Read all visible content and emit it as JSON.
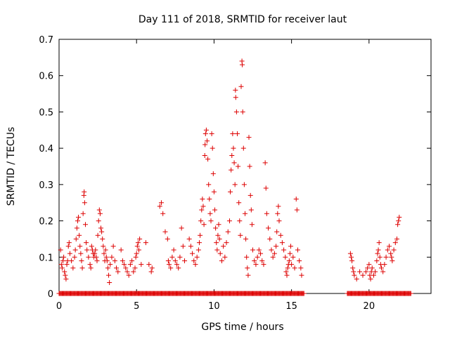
{
  "chart_data": {
    "type": "scatter",
    "title": "Day 111 of 2018, SRMTID for receiver laut",
    "xlabel": "GPS time / hours",
    "ylabel": "SRMTID / TECUs",
    "xlim": [
      0,
      24
    ],
    "ylim": [
      0,
      0.7
    ],
    "x_ticks": [
      0,
      5,
      10,
      15,
      20
    ],
    "x_tick_labels": [
      "0",
      "5",
      "10",
      "15",
      "20"
    ],
    "y_ticks": [
      0,
      0.1,
      0.2,
      0.3,
      0.4,
      0.5,
      0.6,
      0.7
    ],
    "y_tick_labels": [
      "0",
      "0.1",
      "0.2",
      "0.3",
      "0.4",
      "0.5",
      "0.6",
      "0.7"
    ],
    "grid": false,
    "marker": "plus",
    "marker_color": "#dd0000",
    "series": [
      {
        "name": "SRMTID",
        "points": [
          [
            0.1,
            0.12
          ],
          [
            0.15,
            0.08
          ],
          [
            0.2,
            0.07
          ],
          [
            0.25,
            0.09
          ],
          [
            0.3,
            0.1
          ],
          [
            0.35,
            0.06
          ],
          [
            0.4,
            0.05
          ],
          [
            0.45,
            0.04
          ],
          [
            0.5,
            0.08
          ],
          [
            0.55,
            0.09
          ],
          [
            0.6,
            0.13
          ],
          [
            0.65,
            0.14
          ],
          [
            0.7,
            0.11
          ],
          [
            0.8,
            0.09
          ],
          [
            0.9,
            0.07
          ],
          [
            1.0,
            0.1
          ],
          [
            1.05,
            0.12
          ],
          [
            1.1,
            0.15
          ],
          [
            1.15,
            0.18
          ],
          [
            1.2,
            0.2
          ],
          [
            1.25,
            0.21
          ],
          [
            1.3,
            0.16
          ],
          [
            1.35,
            0.13
          ],
          [
            1.4,
            0.11
          ],
          [
            1.45,
            0.09
          ],
          [
            1.5,
            0.07
          ],
          [
            1.55,
            0.22
          ],
          [
            1.6,
            0.27
          ],
          [
            1.62,
            0.28
          ],
          [
            1.65,
            0.25
          ],
          [
            1.7,
            0.19
          ],
          [
            1.75,
            0.14
          ],
          [
            1.8,
            0.12
          ],
          [
            1.9,
            0.1
          ],
          [
            2.0,
            0.08
          ],
          [
            2.05,
            0.07
          ],
          [
            2.1,
            0.13
          ],
          [
            2.15,
            0.12
          ],
          [
            2.2,
            0.11
          ],
          [
            2.25,
            0.1
          ],
          [
            2.3,
            0.11
          ],
          [
            2.35,
            0.12
          ],
          [
            2.4,
            0.1
          ],
          [
            2.45,
            0.09
          ],
          [
            2.5,
            0.16
          ],
          [
            2.55,
            0.2
          ],
          [
            2.6,
            0.23
          ],
          [
            2.65,
            0.22
          ],
          [
            2.7,
            0.18
          ],
          [
            2.75,
            0.17
          ],
          [
            2.8,
            0.15
          ],
          [
            2.85,
            0.13
          ],
          [
            2.9,
            0.11
          ],
          [
            2.95,
            0.09
          ],
          [
            3.0,
            0.12
          ],
          [
            3.05,
            0.1
          ],
          [
            3.1,
            0.09
          ],
          [
            3.15,
            0.07
          ],
          [
            3.2,
            0.05
          ],
          [
            3.25,
            0.03
          ],
          [
            3.3,
            0.08
          ],
          [
            3.4,
            0.1
          ],
          [
            3.5,
            0.13
          ],
          [
            3.6,
            0.09
          ],
          [
            3.7,
            0.07
          ],
          [
            3.8,
            0.06
          ],
          [
            4.0,
            0.12
          ],
          [
            4.1,
            0.09
          ],
          [
            4.2,
            0.08
          ],
          [
            4.3,
            0.07
          ],
          [
            4.4,
            0.06
          ],
          [
            4.5,
            0.05
          ],
          [
            4.6,
            0.08
          ],
          [
            4.7,
            0.09
          ],
          [
            4.8,
            0.06
          ],
          [
            4.9,
            0.07
          ],
          [
            4.95,
            0.1
          ],
          [
            5.0,
            0.11
          ],
          [
            5.05,
            0.13
          ],
          [
            5.1,
            0.14
          ],
          [
            5.15,
            0.12
          ],
          [
            5.2,
            0.15
          ],
          [
            5.3,
            0.08
          ],
          [
            5.6,
            0.14
          ],
          [
            5.8,
            0.08
          ],
          [
            5.95,
            0.06
          ],
          [
            6.0,
            0.07
          ],
          [
            6.5,
            0.24
          ],
          [
            6.6,
            0.25
          ],
          [
            6.7,
            0.22
          ],
          [
            6.85,
            0.17
          ],
          [
            7.0,
            0.15
          ],
          [
            7.05,
            0.09
          ],
          [
            7.1,
            0.08
          ],
          [
            7.2,
            0.07
          ],
          [
            7.3,
            0.1
          ],
          [
            7.4,
            0.12
          ],
          [
            7.5,
            0.09
          ],
          [
            7.6,
            0.08
          ],
          [
            7.7,
            0.07
          ],
          [
            7.8,
            0.1
          ],
          [
            7.9,
            0.18
          ],
          [
            8.0,
            0.13
          ],
          [
            8.1,
            0.09
          ],
          [
            8.4,
            0.15
          ],
          [
            8.5,
            0.13
          ],
          [
            8.6,
            0.11
          ],
          [
            8.7,
            0.09
          ],
          [
            8.8,
            0.08
          ],
          [
            8.9,
            0.1
          ],
          [
            9.0,
            0.12
          ],
          [
            9.05,
            0.14
          ],
          [
            9.1,
            0.16
          ],
          [
            9.15,
            0.2
          ],
          [
            9.2,
            0.23
          ],
          [
            9.25,
            0.26
          ],
          [
            9.3,
            0.24
          ],
          [
            9.35,
            0.19
          ],
          [
            9.4,
            0.38
          ],
          [
            9.42,
            0.41
          ],
          [
            9.45,
            0.44
          ],
          [
            9.5,
            0.45
          ],
          [
            9.55,
            0.42
          ],
          [
            9.6,
            0.37
          ],
          [
            9.65,
            0.3
          ],
          [
            9.7,
            0.26
          ],
          [
            9.75,
            0.22
          ],
          [
            9.8,
            0.2
          ],
          [
            9.85,
            0.44
          ],
          [
            9.9,
            0.4
          ],
          [
            9.95,
            0.33
          ],
          [
            10.0,
            0.28
          ],
          [
            10.05,
            0.23
          ],
          [
            10.1,
            0.18
          ],
          [
            10.15,
            0.14
          ],
          [
            10.2,
            0.12
          ],
          [
            10.25,
            0.16
          ],
          [
            10.3,
            0.19
          ],
          [
            10.35,
            0.15
          ],
          [
            10.4,
            0.11
          ],
          [
            10.5,
            0.09
          ],
          [
            10.6,
            0.13
          ],
          [
            10.7,
            0.1
          ],
          [
            10.8,
            0.14
          ],
          [
            10.9,
            0.17
          ],
          [
            11.0,
            0.2
          ],
          [
            11.05,
            0.28
          ],
          [
            11.1,
            0.34
          ],
          [
            11.15,
            0.38
          ],
          [
            11.2,
            0.44
          ],
          [
            11.25,
            0.4
          ],
          [
            11.3,
            0.36
          ],
          [
            11.35,
            0.3
          ],
          [
            11.38,
            0.56
          ],
          [
            11.4,
            0.54
          ],
          [
            11.45,
            0.5
          ],
          [
            11.5,
            0.44
          ],
          [
            11.55,
            0.35
          ],
          [
            11.6,
            0.25
          ],
          [
            11.65,
            0.2
          ],
          [
            11.7,
            0.16
          ],
          [
            11.75,
            0.57
          ],
          [
            11.8,
            0.64
          ],
          [
            11.82,
            0.63
          ],
          [
            11.85,
            0.5
          ],
          [
            11.9,
            0.4
          ],
          [
            11.95,
            0.3
          ],
          [
            12.0,
            0.22
          ],
          [
            12.05,
            0.15
          ],
          [
            12.1,
            0.1
          ],
          [
            12.15,
            0.07
          ],
          [
            12.2,
            0.05
          ],
          [
            12.25,
            0.43
          ],
          [
            12.3,
            0.35
          ],
          [
            12.35,
            0.27
          ],
          [
            12.4,
            0.23
          ],
          [
            12.45,
            0.19
          ],
          [
            12.5,
            0.12
          ],
          [
            12.6,
            0.09
          ],
          [
            12.7,
            0.08
          ],
          [
            12.8,
            0.1
          ],
          [
            12.9,
            0.12
          ],
          [
            13.0,
            0.11
          ],
          [
            13.1,
            0.09
          ],
          [
            13.2,
            0.08
          ],
          [
            13.3,
            0.36
          ],
          [
            13.35,
            0.29
          ],
          [
            13.4,
            0.22
          ],
          [
            13.5,
            0.18
          ],
          [
            13.6,
            0.15
          ],
          [
            13.7,
            0.12
          ],
          [
            13.8,
            0.1
          ],
          [
            13.9,
            0.11
          ],
          [
            14.0,
            0.13
          ],
          [
            14.05,
            0.17
          ],
          [
            14.1,
            0.22
          ],
          [
            14.15,
            0.24
          ],
          [
            14.2,
            0.2
          ],
          [
            14.3,
            0.16
          ],
          [
            14.4,
            0.14
          ],
          [
            14.5,
            0.12
          ],
          [
            14.6,
            0.1
          ],
          [
            14.65,
            0.06
          ],
          [
            14.7,
            0.05
          ],
          [
            14.75,
            0.07
          ],
          [
            14.8,
            0.08
          ],
          [
            14.85,
            0.09
          ],
          [
            14.9,
            0.11
          ],
          [
            14.95,
            0.13
          ],
          [
            15.0,
            0.08
          ],
          [
            15.1,
            0.1
          ],
          [
            15.2,
            0.07
          ],
          [
            15.3,
            0.26
          ],
          [
            15.35,
            0.23
          ],
          [
            15.4,
            0.12
          ],
          [
            15.5,
            0.09
          ],
          [
            15.6,
            0.07
          ],
          [
            15.65,
            0.05
          ],
          [
            18.8,
            0.11
          ],
          [
            18.85,
            0.1
          ],
          [
            18.9,
            0.09
          ],
          [
            18.95,
            0.07
          ],
          [
            19.0,
            0.06
          ],
          [
            19.05,
            0.05
          ],
          [
            19.2,
            0.04
          ],
          [
            19.4,
            0.06
          ],
          [
            19.6,
            0.05
          ],
          [
            19.8,
            0.06
          ],
          [
            19.9,
            0.07
          ],
          [
            20.0,
            0.08
          ],
          [
            20.05,
            0.05
          ],
          [
            20.1,
            0.04
          ],
          [
            20.15,
            0.06
          ],
          [
            20.2,
            0.07
          ],
          [
            20.3,
            0.05
          ],
          [
            20.4,
            0.06
          ],
          [
            20.5,
            0.09
          ],
          [
            20.55,
            0.11
          ],
          [
            20.6,
            0.12
          ],
          [
            20.65,
            0.14
          ],
          [
            20.7,
            0.1
          ],
          [
            20.75,
            0.08
          ],
          [
            20.8,
            0.07
          ],
          [
            20.9,
            0.06
          ],
          [
            21.0,
            0.08
          ],
          [
            21.1,
            0.1
          ],
          [
            21.2,
            0.12
          ],
          [
            21.3,
            0.13
          ],
          [
            21.4,
            0.11
          ],
          [
            21.45,
            0.1
          ],
          [
            21.5,
            0.09
          ],
          [
            21.6,
            0.12
          ],
          [
            21.7,
            0.14
          ],
          [
            21.8,
            0.15
          ],
          [
            21.85,
            0.19
          ],
          [
            21.9,
            0.2
          ],
          [
            21.95,
            0.21
          ]
        ],
        "zero_baseline_ranges": [
          [
            0.0,
            15.8
          ],
          [
            18.6,
            22.7
          ]
        ]
      }
    ]
  }
}
